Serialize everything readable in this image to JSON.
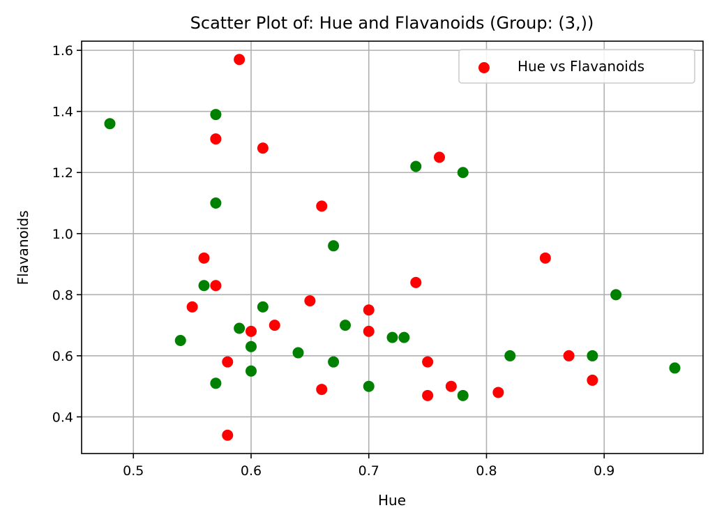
{
  "chart_data": {
    "type": "scatter",
    "title": "Scatter Plot of: Hue and Flavanoids (Group: (3,))",
    "xlabel": "Hue",
    "ylabel": "Flavanoids",
    "xlim": [
      0.456,
      0.984
    ],
    "ylim": [
      0.28,
      1.63
    ],
    "xticks": [
      0.5,
      0.6,
      0.7,
      0.8,
      0.9
    ],
    "xtick_labels": [
      "0.5",
      "0.6",
      "0.7",
      "0.8",
      "0.9"
    ],
    "yticks": [
      0.4,
      0.6,
      0.8,
      1.0,
      1.2,
      1.4,
      1.6
    ],
    "ytick_labels": [
      "0.4",
      "0.6",
      "0.8",
      "1.0",
      "1.2",
      "1.4",
      "1.6"
    ],
    "grid": true,
    "legend": {
      "position": "top-right",
      "entries": [
        {
          "label": "Hue vs Flavanoids",
          "color": "#ff0000"
        }
      ]
    },
    "series": [
      {
        "name": "Hue vs Flavanoids",
        "color": "#ff0000",
        "points": [
          [
            0.59,
            1.57
          ],
          [
            0.57,
            1.31
          ],
          [
            0.61,
            1.28
          ],
          [
            0.76,
            1.25
          ],
          [
            0.66,
            1.09
          ],
          [
            0.56,
            0.92
          ],
          [
            0.85,
            0.92
          ],
          [
            0.57,
            0.83
          ],
          [
            0.74,
            0.84
          ],
          [
            0.65,
            0.78
          ],
          [
            0.55,
            0.76
          ],
          [
            0.7,
            0.75
          ],
          [
            0.62,
            0.7
          ],
          [
            0.6,
            0.68
          ],
          [
            0.7,
            0.68
          ],
          [
            0.87,
            0.6
          ],
          [
            0.58,
            0.58
          ],
          [
            0.75,
            0.58
          ],
          [
            0.89,
            0.52
          ],
          [
            0.77,
            0.5
          ],
          [
            0.66,
            0.49
          ],
          [
            0.81,
            0.48
          ],
          [
            0.75,
            0.47
          ],
          [
            0.58,
            0.34
          ]
        ]
      },
      {
        "color": "#008000",
        "points": [
          [
            0.48,
            1.36
          ],
          [
            0.57,
            1.39
          ],
          [
            0.74,
            1.22
          ],
          [
            0.78,
            1.2
          ],
          [
            0.57,
            1.1
          ],
          [
            0.67,
            0.96
          ],
          [
            0.56,
            0.83
          ],
          [
            0.91,
            0.8
          ],
          [
            0.61,
            0.76
          ],
          [
            0.68,
            0.7
          ],
          [
            0.59,
            0.69
          ],
          [
            0.72,
            0.66
          ],
          [
            0.73,
            0.66
          ],
          [
            0.54,
            0.65
          ],
          [
            0.6,
            0.63
          ],
          [
            0.64,
            0.61
          ],
          [
            0.82,
            0.6
          ],
          [
            0.89,
            0.6
          ],
          [
            0.67,
            0.58
          ],
          [
            0.96,
            0.56
          ],
          [
            0.6,
            0.55
          ],
          [
            0.57,
            0.51
          ],
          [
            0.7,
            0.5
          ],
          [
            0.78,
            0.47
          ]
        ]
      }
    ]
  }
}
